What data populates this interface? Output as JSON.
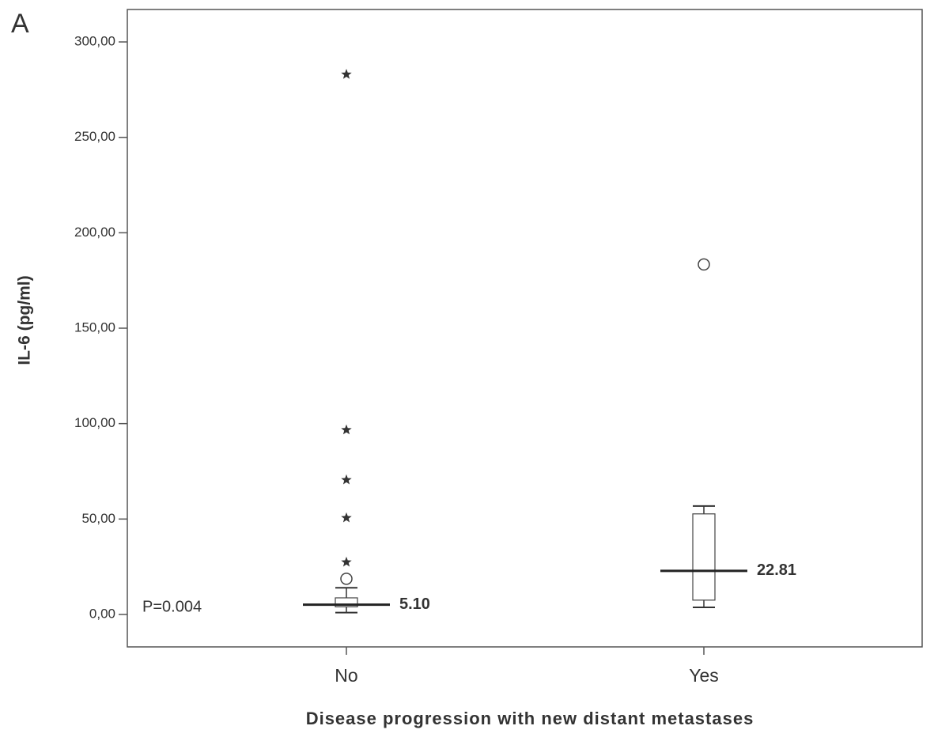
{
  "chart_data": {
    "type": "box",
    "panel_label": "A",
    "annotation": "P=0.004",
    "xlabel": "Disease progression with new distant metastases",
    "ylabel": "IL-6 (pg/ml)",
    "categories": [
      "No",
      "Yes"
    ],
    "whisker_low": [
      1.0,
      3.7
    ],
    "q1": [
      4.0,
      7.5
    ],
    "median": [
      5.1,
      22.81
    ],
    "median_labels": [
      "5.10",
      "22.81"
    ],
    "q3": [
      8.7,
      52.7
    ],
    "whisker_high": [
      14.0,
      56.8
    ],
    "outliers": [
      [
        18.7
      ],
      [
        183.4
      ]
    ],
    "extremes": [
      [
        27.4,
        50.6,
        70.5,
        96.7,
        283.0
      ],
      []
    ],
    "ylim": [
      -17,
      317
    ],
    "yticks": [
      {
        "value": 0,
        "label": "0,00"
      },
      {
        "value": 50,
        "label": "50,00"
      },
      {
        "value": 100,
        "label": "100,00"
      },
      {
        "value": 150,
        "label": "150,00"
      },
      {
        "value": 200,
        "label": "200,00"
      },
      {
        "value": 250,
        "label": "250,00"
      },
      {
        "value": 300,
        "label": "300,00"
      }
    ]
  }
}
